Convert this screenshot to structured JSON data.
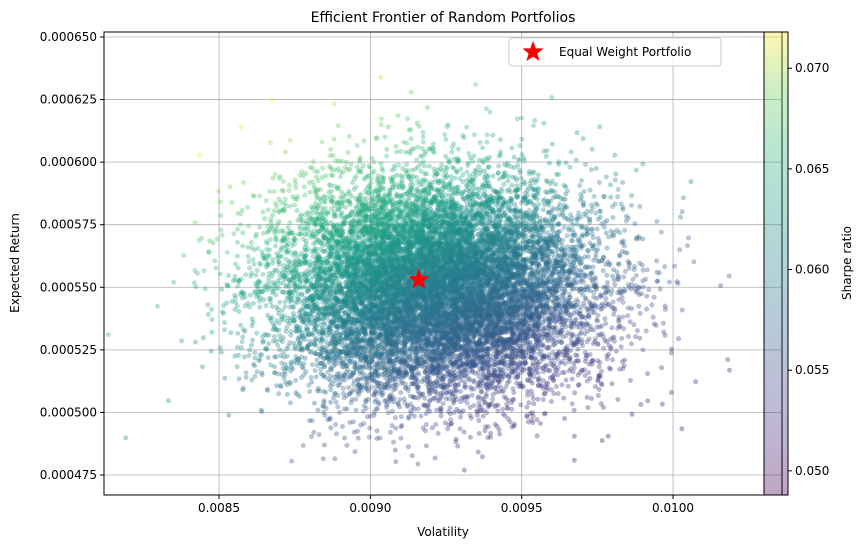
{
  "chart_data": {
    "type": "scatter",
    "title": "Efficient Frontier of Random Portfolios",
    "xlabel": "Volatility",
    "ylabel": "Expected Return",
    "xlim": [
      0.00812,
      0.01036
    ],
    "ylim": [
      0.000467,
      0.000652
    ],
    "xticks": [
      0.0085,
      0.009,
      0.0095,
      0.01
    ],
    "xtick_labels": [
      "0.0085",
      "0.0090",
      "0.0095",
      "0.0100"
    ],
    "yticks": [
      0.000475,
      0.0005,
      0.000525,
      0.00055,
      0.000575,
      0.0006,
      0.000625,
      0.00065
    ],
    "ytick_labels": [
      "0.000475",
      "0.000500",
      "0.000525",
      "0.000550",
      "0.000575",
      "0.000600",
      "0.000625",
      "0.000650"
    ],
    "grid": true,
    "legend_position": "top-right",
    "series": [
      {
        "kind": "scatter-cloud",
        "color_by": "sharpe",
        "colormap": "viridis",
        "alpha": 0.35,
        "center": [
          0.00921,
          0.00055
        ],
        "std": [
          0.00026,
          2.15e-05
        ],
        "count": 14000
      },
      {
        "name": "Equal Weight Portfolio",
        "marker": "star",
        "color": "#ff0000",
        "x": [
          0.00916
        ],
        "y": [
          0.000553
        ]
      }
    ],
    "colorbar": {
      "label": "Sharpe ratio",
      "range": [
        0.0488,
        0.0718
      ],
      "ticks": [
        0.05,
        0.055,
        0.06,
        0.065,
        0.07
      ],
      "tick_labels": [
        "0.050",
        "0.055",
        "0.060",
        "0.065",
        "0.070"
      ]
    }
  }
}
